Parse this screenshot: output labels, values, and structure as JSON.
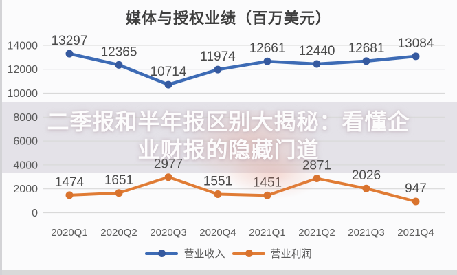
{
  "title": "媒体与授权业绩（百万美元）",
  "watermark": {
    "line1": "二季报和半年报区别大揭秘：看懂企",
    "line2": "业财报的隐藏门道"
  },
  "chart_data": {
    "type": "line",
    "title": "媒体与授权业绩（百万美元）",
    "categories": [
      "2020Q1",
      "2020Q2",
      "2020Q3",
      "2020Q4",
      "2021Q1",
      "2021Q2",
      "2021Q3",
      "2021Q4"
    ],
    "series": [
      {
        "name": "营业收入",
        "color": "#3d6bb5",
        "marker_color": "#35599f",
        "values": [
          13297,
          12365,
          10714,
          11974,
          12661,
          12440,
          12681,
          13084
        ]
      },
      {
        "name": "营业利润",
        "color": "#e07c35",
        "marker_color": "#d9732e",
        "values": [
          1474,
          1651,
          2977,
          1551,
          1451,
          2871,
          2026,
          947
        ]
      }
    ],
    "xlabel": "",
    "ylabel": "",
    "ylim": [
      0,
      14000
    ],
    "ytick_step": 2000,
    "grid": true,
    "grid_color": "#d9d9d9",
    "tick_label_color": "#595959",
    "data_label_color": "#4a4a4a",
    "legend_position": "bottom"
  }
}
